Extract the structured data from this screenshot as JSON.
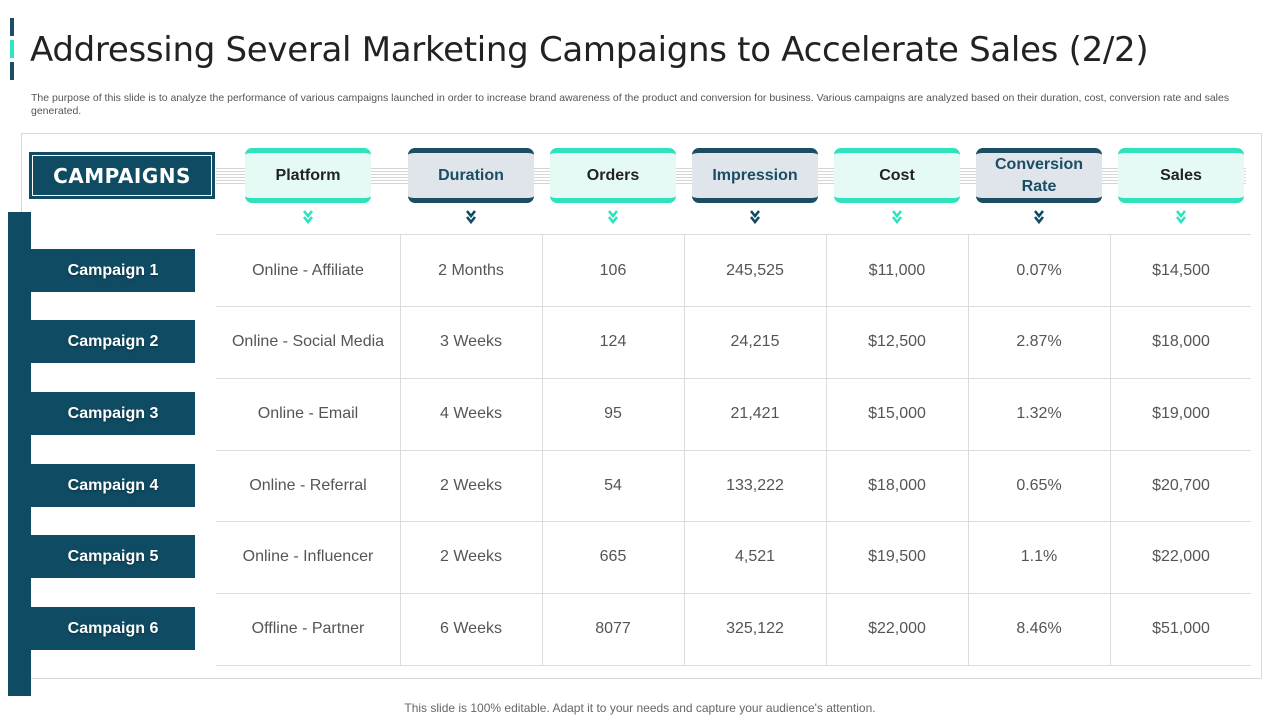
{
  "title": "Addressing Several Marketing Campaigns to Accelerate Sales (2/2)",
  "description": "The purpose of this slide is to analyze the performance of various campaigns launched in order to increase brand awareness of the product and conversion for business. Various campaigns are analyzed based on their duration, cost, conversion rate and sales generated.",
  "campaigns_label": "CAMPAIGNS",
  "columns": [
    {
      "label": "Platform",
      "style": "teal"
    },
    {
      "label": "Duration",
      "style": "navy"
    },
    {
      "label": "Orders",
      "style": "teal"
    },
    {
      "label": "Impression",
      "style": "navy"
    },
    {
      "label": "Cost",
      "style": "teal"
    },
    {
      "label": "Conversion Rate",
      "style": "navy"
    },
    {
      "label": "Sales",
      "style": "teal"
    }
  ],
  "rows": [
    {
      "name": "Campaign 1",
      "platform": "Online - Affiliate",
      "duration": "2 Months",
      "orders": "106",
      "impression": "245,525",
      "cost": "$11,000",
      "conversion_rate": "0.07%",
      "sales": "$14,500"
    },
    {
      "name": "Campaign 2",
      "platform": "Online - Social Media",
      "duration": "3 Weeks",
      "orders": "124",
      "impression": "24,215",
      "cost": "$12,500",
      "conversion_rate": "2.87%",
      "sales": "$18,000"
    },
    {
      "name": "Campaign 3",
      "platform": "Online - Email",
      "duration": "4 Weeks",
      "orders": "95",
      "impression": "21,421",
      "cost": "$15,000",
      "conversion_rate": "1.32%",
      "sales": "$19,000"
    },
    {
      "name": "Campaign 4",
      "platform": "Online - Referral",
      "duration": "2 Weeks",
      "orders": "54",
      "impression": "133,222",
      "cost": "$18,000",
      "conversion_rate": "0.65%",
      "sales": "$20,700"
    },
    {
      "name": "Campaign 5",
      "platform": "Online - Influencer",
      "duration": "2 Weeks",
      "orders": "665",
      "impression": "4,521",
      "cost": "$19,500",
      "conversion_rate": "1.1%",
      "sales": "$22,000"
    },
    {
      "name": "Campaign 6",
      "platform": "Offline - Partner",
      "duration": "6 Weeks",
      "orders": "8077",
      "impression": "325,122",
      "cost": "$22,000",
      "conversion_rate": "8.46%",
      "sales": "$51,000"
    }
  ],
  "footer": "This slide is 100% editable. Adapt it to your needs and capture your audience's attention.",
  "colors": {
    "navy": "#0f4b63",
    "teal": "#2de2bd",
    "teal_light": "#e6faf5",
    "navy_light": "#dfe5eb"
  }
}
